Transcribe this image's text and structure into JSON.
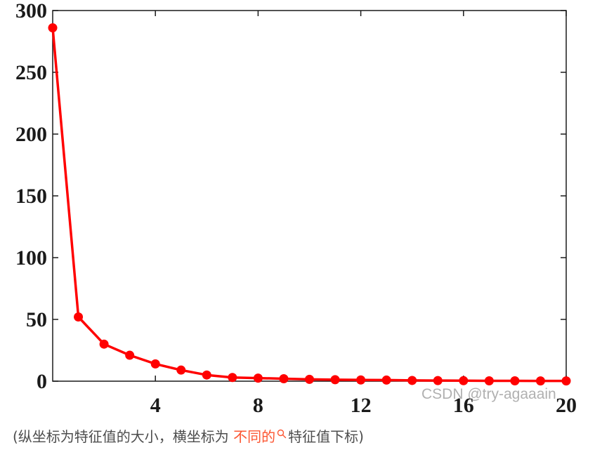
{
  "chart_data": {
    "type": "line",
    "title": "",
    "xlabel": "",
    "ylabel": "",
    "x": [
      0,
      1,
      2,
      3,
      4,
      5,
      6,
      7,
      8,
      9,
      10,
      11,
      12,
      13,
      14,
      15,
      16,
      17,
      18,
      19,
      20
    ],
    "series": [
      {
        "values": [
          286,
          52,
          30,
          21,
          14,
          9,
          5,
          3,
          2.5,
          2,
          1.5,
          1.2,
          1,
          0.9,
          0.6,
          0.5,
          0.4,
          0.3,
          0.3,
          0.2,
          0.2
        ]
      }
    ],
    "xlim": [
      0,
      20
    ],
    "ylim": [
      0,
      300
    ],
    "xticks": [
      "4",
      "8",
      "12",
      "16",
      "20"
    ],
    "yticks": [
      "0",
      "50",
      "100",
      "150",
      "200",
      "250",
      "300"
    ],
    "grid": false,
    "legend": "none",
    "line_color": "#ff0000",
    "marker": "circle"
  },
  "watermark": "CSDN @try-agaaain",
  "caption": {
    "prefix": "(纵坐标为特征值的大小，横坐标为 ",
    "link": "不同的",
    "suffix": "特征值下标)"
  },
  "colors": {
    "caption_text": "#4d4d4d",
    "caption_link": "#fc5531"
  },
  "icons": {
    "caption_search": "search-icon"
  }
}
